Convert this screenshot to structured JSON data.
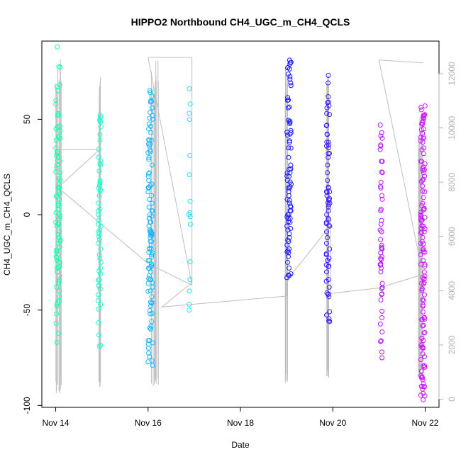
{
  "chart_data": {
    "type": "scatter",
    "title": "HIPPO2 Northbound CH4_UGC_m_CH4_QCLS",
    "xlabel": "Date",
    "ylabel": "CH4_UGC_m_CH4_QCLS",
    "x_unit": "days since Nov 14",
    "xlim": [
      -0.3,
      8.3
    ],
    "ylim": [
      -101,
      91
    ],
    "y2lim": [
      -300,
      13200
    ],
    "x_ticks": [
      {
        "value": 0,
        "label": "Nov 14"
      },
      {
        "value": 2,
        "label": "Nov 16"
      },
      {
        "value": 4,
        "label": "Nov 18"
      },
      {
        "value": 6,
        "label": "Nov 20"
      },
      {
        "value": 8,
        "label": "Nov 22"
      }
    ],
    "y_ticks": [
      {
        "value": -100,
        "label": "-100"
      },
      {
        "value": -50,
        "label": "-50"
      },
      {
        "value": 0,
        "label": "0"
      },
      {
        "value": 50,
        "label": "50"
      }
    ],
    "y2_ticks": [
      {
        "value": 0,
        "label": "0"
      },
      {
        "value": 2000,
        "label": "2000"
      },
      {
        "value": 4000,
        "label": "4000"
      },
      {
        "value": 6000,
        "label": "6000"
      },
      {
        "value": 8000,
        "label": "8000"
      },
      {
        "value": 10000,
        "label": "10000"
      },
      {
        "value": 12000,
        "label": "12000"
      }
    ],
    "colors": {
      "axis": "#000000",
      "altitude_trace": "#bebebe",
      "secondary_axis": "#b3b3b3",
      "flight_1": "#19ffaa",
      "flight_2": "#19ffd2",
      "flight_3": "#19b4ff",
      "flight_4": "#19e6ff",
      "flight_5": "#1919ff",
      "flight_6": "#3c19ff",
      "flight_7": "#b419ff",
      "flight_8": "#c819ff"
    },
    "series": [
      {
        "name": "flight_1",
        "color": "#19ffaa",
        "x": 0.05,
        "spread": 0.1,
        "count": 90,
        "ymin": -67,
        "ymax": 88,
        "values": [
          68,
          67,
          58,
          52,
          46,
          44,
          40,
          35,
          33,
          32,
          31,
          28,
          26,
          22,
          19,
          18,
          16,
          14,
          12,
          11,
          10,
          8,
          6,
          5,
          3,
          1,
          -1,
          -2,
          -4,
          -5,
          -6,
          -9,
          -12,
          -14,
          -15,
          -17,
          -19,
          -22,
          -24,
          -25,
          -27,
          -28,
          -30,
          -32,
          -34,
          -35,
          -36,
          -38,
          -40,
          -43,
          -45,
          -48,
          -52,
          -57,
          -67,
          88,
          65,
          53,
          45,
          33
        ]
      },
      {
        "name": "flight_2",
        "color": "#19ffd2",
        "x": 0.95,
        "spread": 0.06,
        "count": 55,
        "ymin": -69,
        "ymax": 52,
        "values": [
          52,
          51,
          46,
          42,
          39,
          30,
          26,
          23,
          17,
          15,
          13,
          10,
          6,
          3,
          0,
          -3,
          -6,
          -10,
          -13,
          -15,
          -18,
          -21,
          -23,
          -25,
          -28,
          -31,
          -34,
          -37,
          -39,
          -42,
          -45,
          -47,
          -69
        ]
      },
      {
        "name": "flight_3",
        "color": "#19b4ff",
        "x": 2.05,
        "spread": 0.1,
        "count": 110,
        "ymin": -79,
        "ymax": 65,
        "values": [
          65,
          64,
          62,
          59,
          56,
          52,
          50,
          45,
          43,
          39,
          36,
          33,
          29,
          26,
          22,
          20,
          18,
          16,
          14,
          12,
          10,
          8,
          6,
          4,
          2,
          0,
          -2,
          -4,
          -6,
          -8,
          -10,
          -12,
          -14,
          -16,
          -18,
          -20,
          -22,
          -24,
          -26,
          -28,
          -30,
          -32,
          -34,
          -36,
          -38,
          -40,
          -43,
          -46,
          -52,
          -56,
          -60,
          -66,
          -79
        ]
      },
      {
        "name": "flight_4",
        "color": "#19e6ff",
        "x": 2.9,
        "spread": 0.03,
        "count": 16,
        "ymin": -50,
        "ymax": 66,
        "values": [
          66,
          58,
          31,
          7,
          1,
          0,
          -1,
          -5,
          -34,
          -40,
          -47,
          -50
        ]
      },
      {
        "name": "flight_5",
        "color": "#1919ff",
        "x": 5.05,
        "spread": 0.1,
        "count": 80,
        "ymin": -33,
        "ymax": 81,
        "values": [
          81,
          79,
          71,
          60,
          56,
          49,
          43,
          38,
          35,
          30,
          26,
          24,
          22,
          20,
          18,
          16,
          14,
          12,
          10,
          8,
          6,
          4,
          2,
          0,
          -2,
          -4,
          -6,
          -8,
          -10,
          -12,
          -14,
          -16,
          -18,
          -20,
          -22,
          -25,
          -28,
          -31,
          -33
        ]
      },
      {
        "name": "flight_6",
        "color": "#3c19ff",
        "x": 5.9,
        "spread": 0.08,
        "count": 70,
        "ymin": -56,
        "ymax": 73,
        "values": [
          73,
          56,
          42,
          38,
          35,
          30,
          26,
          22,
          18,
          14,
          12,
          10,
          8,
          6,
          4,
          2,
          0,
          -2,
          -4,
          -6,
          -9,
          -12,
          -15,
          -18,
          -21,
          -24,
          -27,
          -30,
          -34,
          -38,
          -41,
          -43,
          -56
        ]
      },
      {
        "name": "flight_7",
        "color": "#b419ff",
        "x": 7.05,
        "spread": 0.05,
        "count": 50,
        "ymin": -75,
        "ymax": 47,
        "values": [
          47,
          43,
          40,
          36,
          28,
          22,
          17,
          14,
          10,
          2,
          -3,
          -5,
          -9,
          -13,
          -16,
          -18,
          -20,
          -23,
          -26,
          -28,
          -30,
          -36,
          -75
        ]
      },
      {
        "name": "flight_8",
        "color": "#c819ff",
        "x": 7.95,
        "spread": 0.1,
        "count": 130,
        "ymin": -97,
        "ymax": 57,
        "values": [
          57,
          55,
          52,
          49,
          45,
          40,
          38,
          35,
          32,
          28,
          25,
          22,
          18,
          15,
          12,
          9,
          6,
          3,
          0,
          -3,
          -6,
          -9,
          -12,
          -15,
          -18,
          -21,
          -24,
          -27,
          -30,
          -33,
          -36,
          -39,
          -42,
          -45,
          -48,
          -51,
          -55,
          -58,
          -62,
          -66,
          -70,
          -73,
          -76,
          -80,
          -85,
          -90,
          -95,
          -97
        ]
      }
    ],
    "altitude_trace": {
      "axis": "y2",
      "points": [
        [
          0.05,
          9200
        ],
        [
          0.95,
          9200
        ],
        [
          0.05,
          7800
        ],
        [
          2.0,
          5000
        ],
        [
          2.95,
          4200
        ],
        [
          2.0,
          12600
        ],
        [
          2.95,
          12600
        ],
        [
          2.95,
          4300
        ],
        [
          2.3,
          3400
        ],
        [
          5.0,
          3800
        ],
        [
          5.0,
          4300
        ],
        [
          5.2,
          4800
        ],
        [
          5.95,
          6400
        ],
        [
          5.95,
          3900
        ],
        [
          7.0,
          4100
        ],
        [
          7.95,
          4600
        ],
        [
          7.0,
          12500
        ],
        [
          7.95,
          12400
        ]
      ],
      "profile_flights": [
        {
          "x": 0.05,
          "spread": 0.14,
          "low": 100,
          "high": 12700
        },
        {
          "x": 0.95,
          "spread": 0.04,
          "low": 400,
          "high": 11900
        },
        {
          "x": 2.15,
          "spread": 0.16,
          "low": 400,
          "high": 12500
        },
        {
          "x": 5.0,
          "spread": 0.06,
          "low": 400,
          "high": 12300
        },
        {
          "x": 5.9,
          "spread": 0.06,
          "low": 700,
          "high": 12400
        },
        {
          "x": 7.9,
          "spread": 0.12,
          "low": 700,
          "high": 10600
        }
      ]
    }
  }
}
